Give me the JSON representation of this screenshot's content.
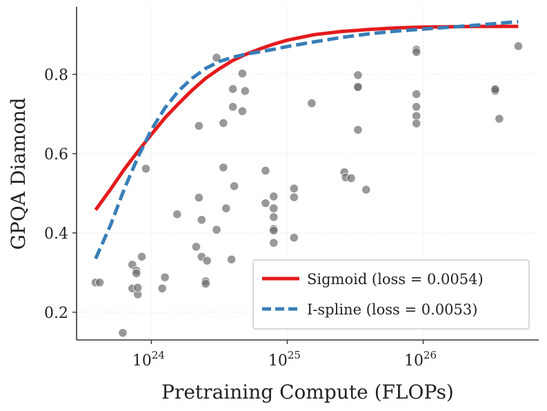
{
  "chart_data": {
    "type": "scatter",
    "xlabel": "Pretraining Compute (FLOPs)",
    "ylabel": "GPQA Diamond",
    "x_scale": "log10",
    "xlim": [
      23.45,
      26.85
    ],
    "ylim": [
      0.13,
      0.97
    ],
    "y_ticks": [
      0.2,
      0.4,
      0.6,
      0.8
    ],
    "y_tick_labels": [
      "0.2",
      "0.4",
      "0.6",
      "0.8"
    ],
    "x_ticks": [
      24,
      25,
      26
    ],
    "x_tick_labels": [
      {
        "base": "10",
        "exp": "24"
      },
      {
        "base": "10",
        "exp": "25"
      },
      {
        "base": "10",
        "exp": "26"
      }
    ],
    "grid": true,
    "legend_position": "bottom-right",
    "points": [
      [
        23.59,
        0.275
      ],
      [
        23.62,
        0.275
      ],
      [
        23.79,
        0.148
      ],
      [
        23.86,
        0.32
      ],
      [
        23.86,
        0.26
      ],
      [
        23.89,
        0.305
      ],
      [
        23.89,
        0.298
      ],
      [
        23.9,
        0.245
      ],
      [
        23.9,
        0.262
      ],
      [
        23.93,
        0.34
      ],
      [
        23.96,
        0.562
      ],
      [
        24.08,
        0.26
      ],
      [
        24.1,
        0.288
      ],
      [
        24.19,
        0.447
      ],
      [
        24.33,
        0.365
      ],
      [
        24.35,
        0.67
      ],
      [
        24.35,
        0.489
      ],
      [
        24.37,
        0.433
      ],
      [
        24.37,
        0.34
      ],
      [
        24.4,
        0.278
      ],
      [
        24.4,
        0.272
      ],
      [
        24.41,
        0.33
      ],
      [
        24.48,
        0.842
      ],
      [
        24.48,
        0.408
      ],
      [
        24.53,
        0.677
      ],
      [
        24.53,
        0.565
      ],
      [
        24.55,
        0.462
      ],
      [
        24.59,
        0.333
      ],
      [
        24.6,
        0.763
      ],
      [
        24.6,
        0.718
      ],
      [
        24.61,
        0.518
      ],
      [
        24.67,
        0.802
      ],
      [
        24.67,
        0.707
      ],
      [
        24.69,
        0.758
      ],
      [
        24.84,
        0.557
      ],
      [
        24.84,
        0.475
      ],
      [
        24.9,
        0.492
      ],
      [
        24.9,
        0.462
      ],
      [
        24.9,
        0.44
      ],
      [
        24.9,
        0.41
      ],
      [
        24.9,
        0.406
      ],
      [
        24.9,
        0.375
      ],
      [
        25.05,
        0.512
      ],
      [
        25.05,
        0.49
      ],
      [
        25.05,
        0.388
      ],
      [
        25.18,
        0.727
      ],
      [
        25.42,
        0.553
      ],
      [
        25.43,
        0.54
      ],
      [
        25.47,
        0.538
      ],
      [
        25.52,
        0.798
      ],
      [
        25.52,
        0.768
      ],
      [
        25.52,
        0.768
      ],
      [
        25.52,
        0.66
      ],
      [
        25.58,
        0.509
      ],
      [
        25.95,
        0.862
      ],
      [
        25.95,
        0.856
      ],
      [
        25.95,
        0.75
      ],
      [
        25.95,
        0.718
      ],
      [
        25.95,
        0.695
      ],
      [
        25.95,
        0.676
      ],
      [
        26.53,
        0.763
      ],
      [
        26.53,
        0.758
      ],
      [
        26.53,
        0.762
      ],
      [
        26.56,
        0.688
      ],
      [
        26.7,
        0.871
      ]
    ],
    "series": [
      {
        "name": "Sigmoid (loss = 0.0054)",
        "color": "#e41a1c",
        "style": "solid",
        "x": [
          23.59,
          23.7,
          23.8,
          23.9,
          24.0,
          24.1,
          24.2,
          24.3,
          24.4,
          24.5,
          24.6,
          24.7,
          24.8,
          24.9,
          25.0,
          25.2,
          25.4,
          25.6,
          25.8,
          26.0,
          26.2,
          26.4,
          26.6,
          26.7
        ],
        "y": [
          0.458,
          0.51,
          0.56,
          0.605,
          0.648,
          0.69,
          0.726,
          0.76,
          0.79,
          0.814,
          0.835,
          0.851,
          0.864,
          0.876,
          0.886,
          0.9,
          0.908,
          0.913,
          0.917,
          0.919,
          0.92,
          0.921,
          0.921,
          0.921
        ]
      },
      {
        "name": "I-spline (loss = 0.0053)",
        "color": "#377eb8",
        "style": "dashed",
        "x": [
          23.59,
          23.7,
          23.8,
          23.9,
          24.0,
          24.1,
          24.2,
          24.3,
          24.4,
          24.5,
          24.6,
          24.7,
          24.8,
          24.9,
          25.0,
          25.2,
          25.4,
          25.6,
          25.8,
          26.0,
          26.2,
          26.4,
          26.6,
          26.7
        ],
        "y": [
          0.335,
          0.42,
          0.51,
          0.59,
          0.66,
          0.715,
          0.758,
          0.79,
          0.815,
          0.832,
          0.843,
          0.851,
          0.857,
          0.863,
          0.87,
          0.882,
          0.893,
          0.902,
          0.909,
          0.914,
          0.919,
          0.924,
          0.93,
          0.933
        ]
      }
    ]
  }
}
